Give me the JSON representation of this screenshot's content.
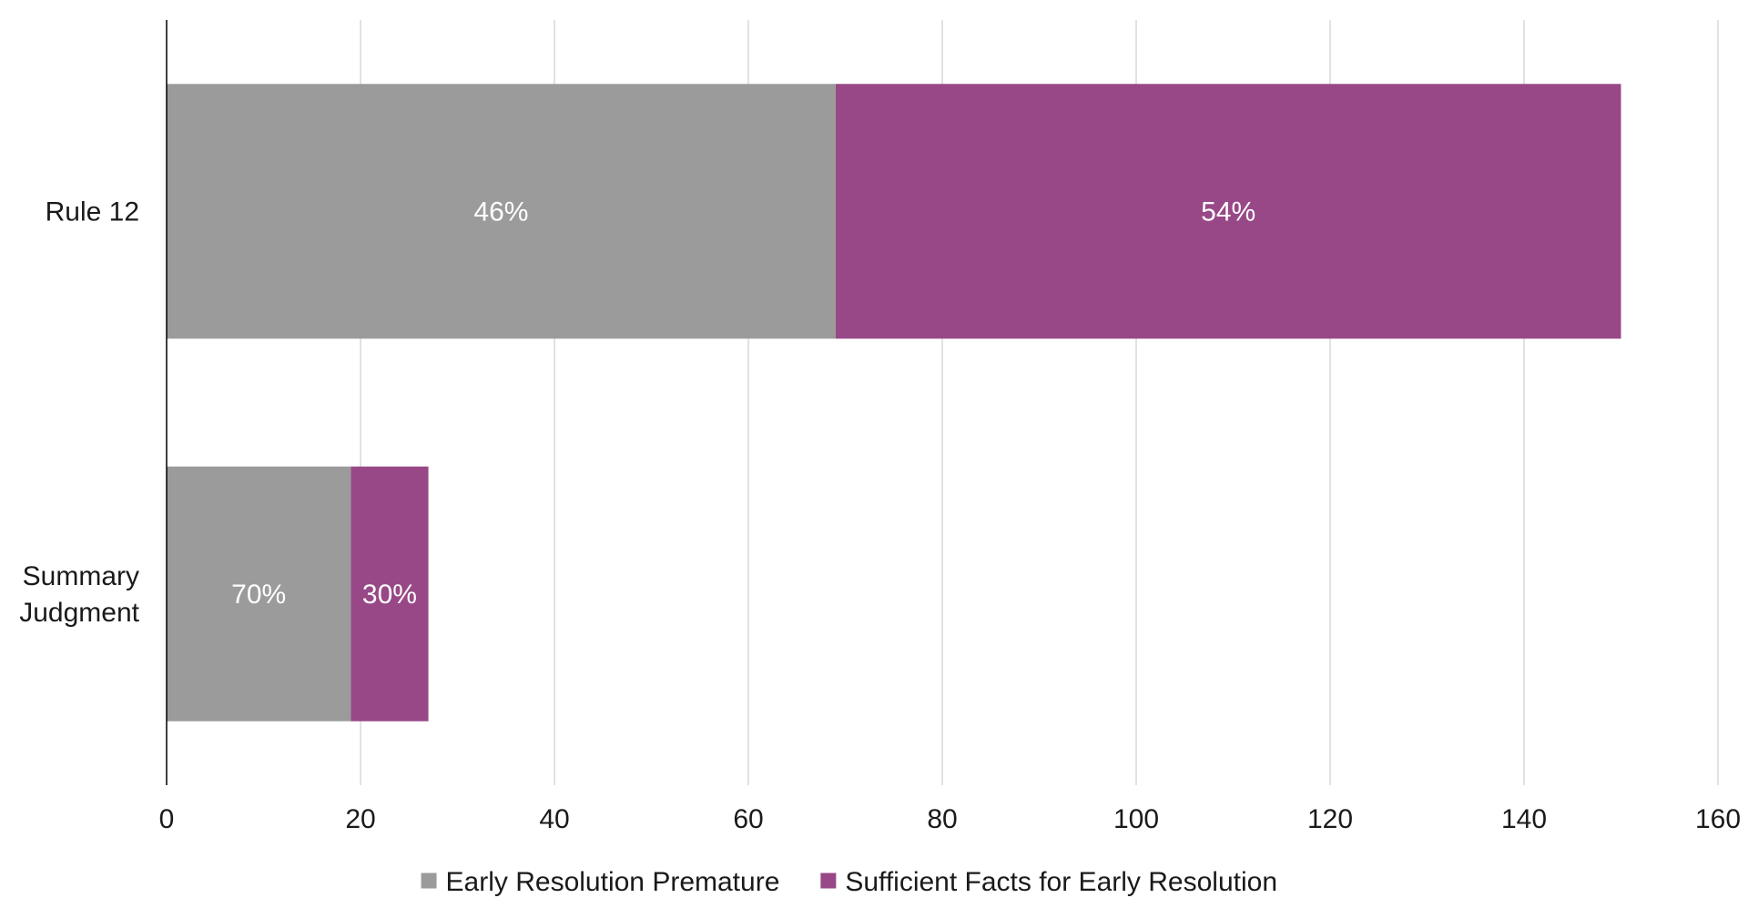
{
  "chart_data": {
    "type": "bar",
    "orientation": "horizontal",
    "stacked": true,
    "categories": [
      "Rule 12",
      "Summary Judgment"
    ],
    "series": [
      {
        "name": "Early Resolution Premature",
        "values": [
          69,
          19
        ],
        "data_labels": [
          "46%",
          "70%"
        ],
        "color": "#9b9b9b"
      },
      {
        "name": "Sufficient Facts for Early Resolution",
        "values": [
          81,
          8
        ],
        "data_labels": [
          "54%",
          "30%"
        ],
        "color": "#984887"
      }
    ],
    "xlim": [
      0,
      160
    ],
    "xticks": [
      "0",
      "20",
      "40",
      "60",
      "80",
      "100",
      "120",
      "140",
      "160"
    ],
    "title": "",
    "xlabel": "",
    "ylabel": "",
    "grid": "vertical",
    "legend": "bottom-center",
    "label_color": "#ffffff",
    "gridline_color": "#d9d9d9",
    "axis_color": "#000000"
  }
}
